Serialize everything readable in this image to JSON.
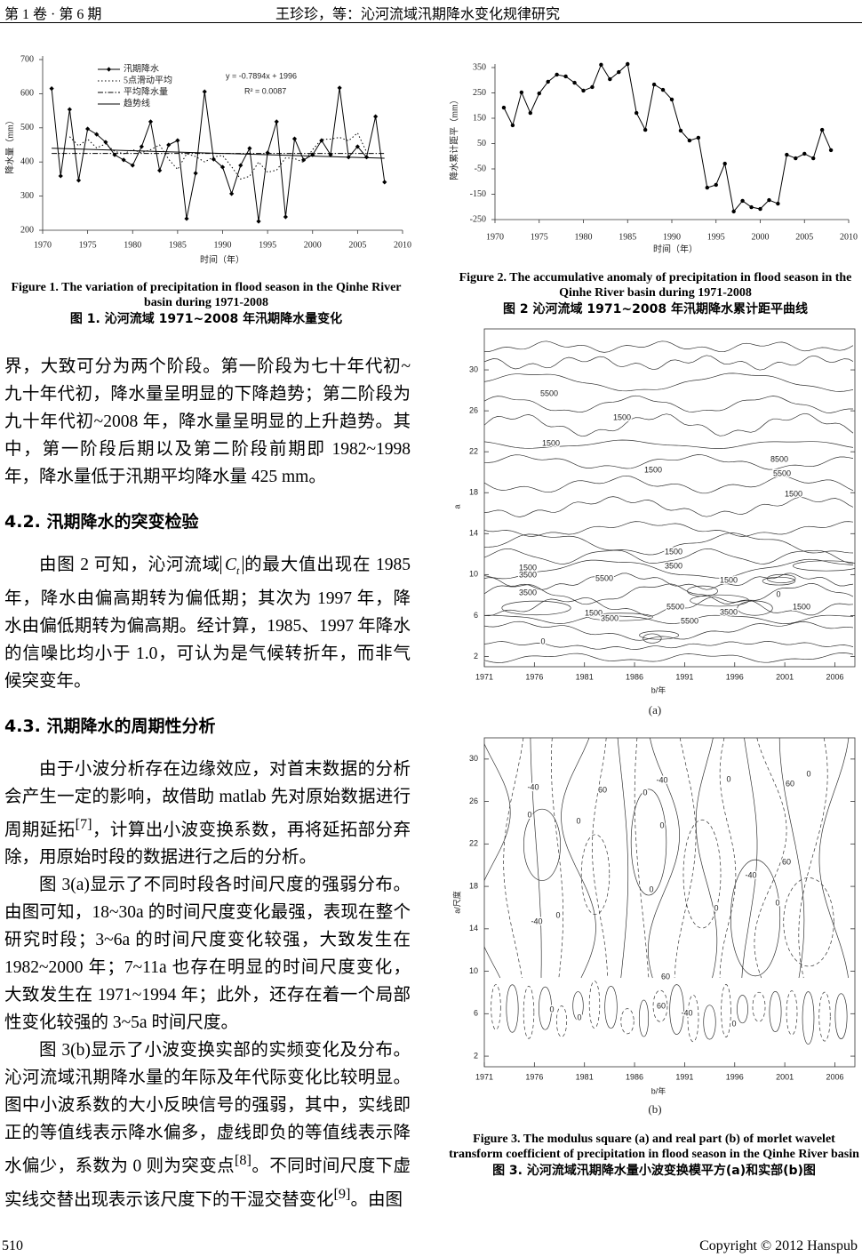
{
  "header": {
    "left": "第 1 卷 · 第 6 期",
    "center": "王珍珍，等：沁河流域汛期降水变化规律研究"
  },
  "chart_data": [
    {
      "type": "line",
      "xlabel": "时间（年）",
      "ylabel": "降水量（mm）",
      "x": [
        1971,
        1972,
        1973,
        1974,
        1975,
        1976,
        1977,
        1978,
        1979,
        1980,
        1981,
        1982,
        1983,
        1984,
        1985,
        1986,
        1987,
        1988,
        1989,
        1990,
        1991,
        1992,
        1993,
        1994,
        1995,
        1996,
        1997,
        1998,
        1999,
        2000,
        2001,
        2002,
        2003,
        2004,
        2005,
        2006,
        2007,
        2008
      ],
      "series": [
        {
          "name": "汛期降水",
          "color": "#000000",
          "style": "solid",
          "marker": "diamond",
          "values": [
            615,
            359,
            554,
            346,
            497,
            481,
            458,
            421,
            406,
            390,
            445,
            518,
            375,
            450,
            463,
            234,
            367,
            606,
            408,
            385,
            307,
            390,
            440,
            226,
            427,
            518,
            239,
            468,
            406,
            421,
            463,
            421,
            617,
            414,
            445,
            414,
            533,
            341
          ]
        },
        {
          "name": "5点滑动平均",
          "color": "#000000",
          "style": "dotted",
          "values": [
            null,
            null,
            474,
            447,
            467,
            441,
            453,
            431,
            424,
            436,
            427,
            436,
            450,
            408,
            378,
            424,
            416,
            400,
            415,
            419,
            386,
            350,
            358,
            400,
            370,
            376,
            412,
            410,
            399,
            436,
            466,
            467,
            472,
            462,
            485,
            429,
            null,
            null
          ]
        },
        {
          "name": "平均降水量",
          "color": "#000000",
          "style": "dash-dot",
          "value": 425
        },
        {
          "name": "趋势线",
          "color": "#000000",
          "style": "solid",
          "slope": -0.7894,
          "intercept": 1996
        }
      ],
      "annotations": [
        "y = -0.7894x + 1996",
        "R² = 0.0087"
      ],
      "xlim": [
        1970,
        2010
      ],
      "xticks": [
        1970,
        1975,
        1980,
        1985,
        1990,
        1995,
        2000,
        2005,
        2010
      ],
      "ylim": [
        200,
        700
      ],
      "yticks": [
        200,
        300,
        400,
        500,
        600,
        700
      ]
    },
    {
      "type": "line",
      "xlabel": "时间（年）",
      "ylabel": "降水累计距平（mm）",
      "x": [
        1971,
        1972,
        1973,
        1974,
        1975,
        1976,
        1977,
        1978,
        1979,
        1980,
        1981,
        1982,
        1983,
        1984,
        1985,
        1986,
        1987,
        1988,
        1989,
        1990,
        1991,
        1992,
        1993,
        1994,
        1995,
        1996,
        1997,
        1998,
        1999,
        2000,
        2001,
        2002,
        2003,
        2004,
        2005,
        2006,
        2007,
        2008
      ],
      "series": [
        {
          "color": "#000000",
          "style": "solid",
          "marker": "circle",
          "values": [
            192,
            122,
            252,
            171,
            248,
            294,
            322,
            315,
            290,
            259,
            273,
            361,
            304,
            332,
            364,
            171,
            104,
            283,
            262,
            224,
            101,
            62,
            73,
            -124,
            -113,
            -29,
            -218,
            -176,
            -201,
            -208,
            -173,
            -187,
            6,
            -8,
            10,
            -8,
            104,
            24
          ]
        }
      ],
      "xlim": [
        1970,
        2010
      ],
      "xticks": [
        1970,
        1975,
        1980,
        1985,
        1990,
        1995,
        2000,
        2005,
        2010
      ],
      "ylim": [
        -250,
        350
      ],
      "yticks": [
        -250,
        -150,
        -50,
        50,
        150,
        250,
        350
      ]
    },
    {
      "type": "contour",
      "panel": "(a)",
      "xlabel": "b/年",
      "ylabel": "a",
      "xlim": [
        1971,
        2008
      ],
      "xticks": [
        1971,
        1976,
        1981,
        1986,
        1991,
        1996,
        2001,
        2006
      ],
      "ylim": [
        1,
        34
      ],
      "yticks": [
        2,
        6,
        10,
        14,
        18,
        22,
        26,
        30
      ],
      "contour_labels": [
        "5500",
        "1500",
        "1500",
        "8500",
        "5500",
        "1500",
        "1500",
        "1500",
        "1500",
        "3500",
        "3500",
        "5500",
        "1500",
        "3500",
        "0",
        "0",
        "1500",
        "3500",
        "5500",
        "3500",
        "1500",
        "5500"
      ]
    },
    {
      "type": "contour",
      "panel": "(b)",
      "xlabel": "b/年",
      "ylabel": "a/尺度",
      "xlim": [
        1971,
        2008
      ],
      "xticks": [
        1971,
        1976,
        1981,
        1986,
        1991,
        1996,
        2001,
        2006
      ],
      "ylim": [
        1,
        32
      ],
      "yticks": [
        2,
        6,
        10,
        14,
        18,
        22,
        26,
        30
      ],
      "contour_labels": [
        "-40",
        "60",
        "0",
        "-40",
        "0",
        "60",
        "0",
        "0",
        "0",
        "0",
        "60",
        "-40",
        "0",
        "0",
        "0",
        "-40",
        "0",
        "60",
        "60",
        "-40",
        "0",
        "0",
        "0"
      ]
    }
  ],
  "captions": [
    {
      "en": "Figure 1. The variation of precipitation in flood season in the Qinhe River basin during 1971-2008",
      "zh": "图 1. 沁河流域 1971~2008 年汛期降水量变化"
    },
    {
      "en": "Figure 2. The accumulative anomaly of precipitation in flood season in the Qinhe River basin during 1971-2008",
      "zh": "图 2  沁河流域 1971~2008 年汛期降水累计距平曲线"
    },
    {
      "en": "Figure 3. The modulus square (a) and real part (b) of morlet wavelet transform coefficient of precipitation in flood season in the Qinhe River basin",
      "zh": "图 3. 沁河流域汛期降水量小波变换模平方(a)和实部(b)图"
    }
  ],
  "body": {
    "blocks": [
      {
        "kind": "p",
        "indent": false,
        "segments": [
          {
            "t": "界，大致可分为两个阶段。第一阶段为七十年代初~九十年代初，降水量呈明显的下降趋势；第二阶段为九十年代初~2008 年，降水量呈明显的上升趋势。其中，第一阶段后期以及第二阶段前期即 1982~1998 年，降水量低于汛期平均降水量 425 mm。"
          }
        ]
      },
      {
        "kind": "h",
        "text": "4.2.  汛期降水的突变检验"
      },
      {
        "kind": "p",
        "indent": true,
        "segments": [
          {
            "t": "由图 2 可知，沁河流域"
          },
          {
            "math": "C",
            "sub": "t"
          },
          {
            "t": "的最大值出现在 1985 年，降水由偏高期转为偏低期；其次为 1997 年，降水由偏低期转为偏高期。经计算，1985、1997 年降水的信噪比均小于 1.0，可认为是气候转折年，而非气候突变年。"
          }
        ]
      },
      {
        "kind": "h",
        "text": "4.3.  汛期降水的周期性分析"
      },
      {
        "kind": "p",
        "indent": true,
        "segments": [
          {
            "t": "由于小波分析存在边缘效应，对首末数据的分析会产生一定的影响，故借助 matlab 先对原始数据进行周期延拓"
          },
          {
            "sup": "[7]"
          },
          {
            "t": "，计算出小波变换系数，再将延拓部分弃除，用原始时段的数据进行之后的分析。"
          }
        ]
      },
      {
        "kind": "p",
        "indent": true,
        "segments": [
          {
            "t": "图 3(a)显示了不同时段各时间尺度的强弱分布。由图可知，18~30a 的时间尺度变化最强，表现在整个研究时段；3~6a 的时间尺度变化较强，大致发生在 1982~2000 年；7~11a 也存在明显的时间尺度变化，大致发生在 1971~1994 年；此外，还存在着一个局部性变化较强的 3~5a 时间尺度。"
          }
        ]
      },
      {
        "kind": "p",
        "indent": true,
        "segments": [
          {
            "t": "图 3(b)显示了小波变换实部的实频变化及分布。沁河流域汛期降水量的年际及年代际变化比较明显。图中小波系数的大小反映信号的强弱，其中，实线即正的等值线表示降水偏多，虚线即负的等值线表示降水偏少，系数为 0 则为突变点"
          },
          {
            "sup": "[8]"
          },
          {
            "t": "。不同时间尺度下虚实线交替出现表示该尺度下的干湿交替变化"
          },
          {
            "sup": "[9]"
          },
          {
            "t": "。由图"
          }
        ]
      }
    ]
  },
  "footer": {
    "page": "510",
    "copyright": "Copyright © 2012 Hanspub"
  }
}
